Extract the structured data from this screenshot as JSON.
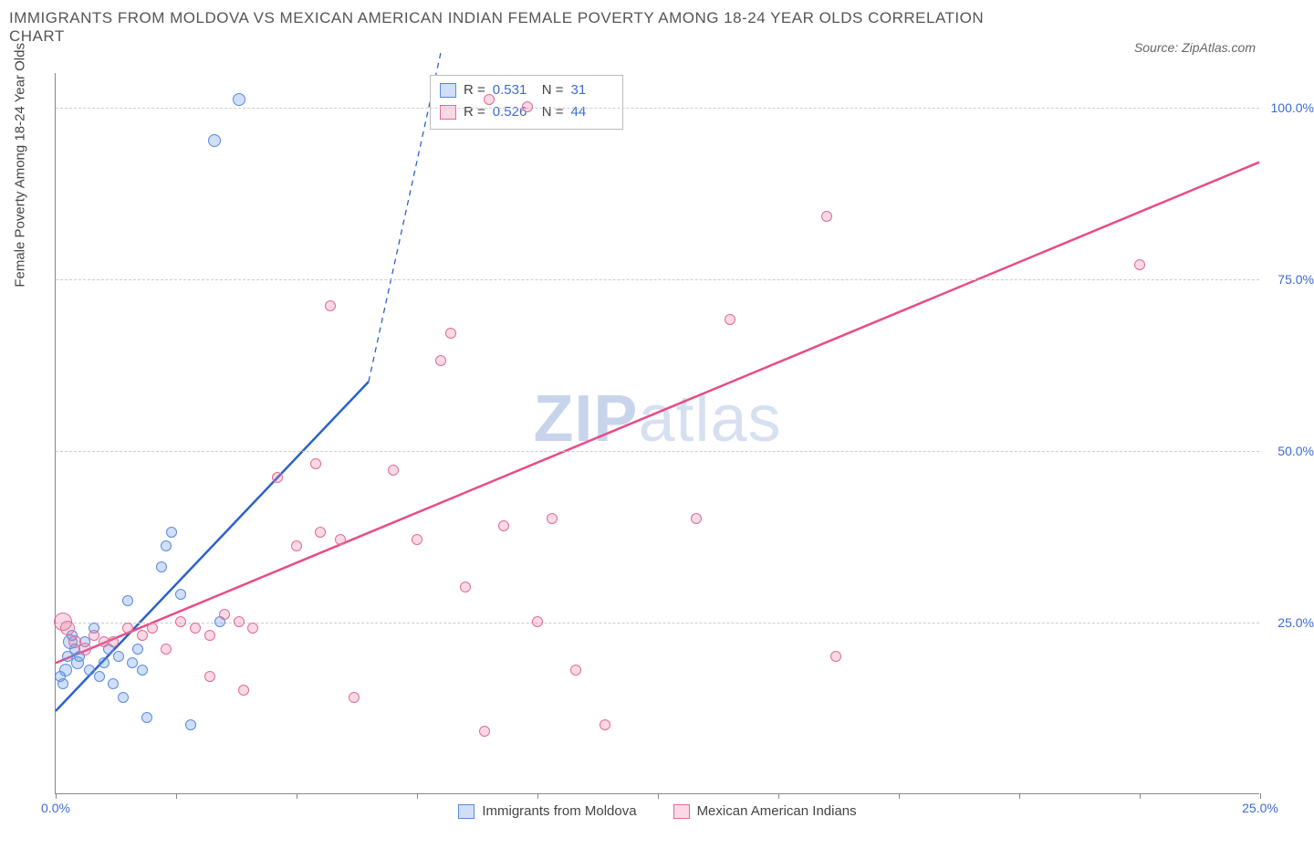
{
  "title_line1": "IMMIGRANTS FROM MOLDOVA VS MEXICAN AMERICAN INDIAN FEMALE POVERTY AMONG 18-24 YEAR OLDS CORRELATION",
  "title_line2": "CHART",
  "source_label": "Source: ZipAtlas.com",
  "y_axis_title": "Female Poverty Among 18-24 Year Olds",
  "watermark_thin": "ZIP",
  "watermark_bold": "atlas",
  "chart": {
    "type": "scatter-correlation",
    "xlim": [
      0,
      25
    ],
    "ylim": [
      0,
      105
    ],
    "x_ticks": [
      0,
      2.5,
      5,
      7.5,
      10,
      12.5,
      15,
      17.5,
      20,
      22.5,
      25
    ],
    "x_tick_labels": {
      "0": "0.0%",
      "25": "25.0%"
    },
    "y_ticks": [
      25,
      50,
      75,
      100
    ],
    "y_tick_labels": {
      "25": "25.0%",
      "50": "50.0%",
      "75": "75.0%",
      "100": "100.0%"
    },
    "grid_color": "#cccccc",
    "background_color": "#ffffff",
    "axis_label_color": "#3b6bd6",
    "series": [
      {
        "name": "Immigrants from Moldova",
        "color_fill": "rgba(100,150,230,0.30)",
        "color_stroke": "#5a8adb",
        "line_color": "#2b62c9",
        "R": "0.531",
        "N": "31",
        "trend": {
          "x1": 0,
          "y1": 12,
          "x2_solid": 6.5,
          "y2_solid": 60,
          "x2_dash": 8,
          "y2_dash": 108
        },
        "points": [
          {
            "x": 0.1,
            "y": 17,
            "r": 6
          },
          {
            "x": 0.15,
            "y": 16,
            "r": 6
          },
          {
            "x": 0.2,
            "y": 18,
            "r": 7
          },
          {
            "x": 0.25,
            "y": 20,
            "r": 6
          },
          {
            "x": 0.3,
            "y": 22,
            "r": 8
          },
          {
            "x": 0.35,
            "y": 23,
            "r": 6
          },
          {
            "x": 0.4,
            "y": 21,
            "r": 6
          },
          {
            "x": 0.45,
            "y": 19,
            "r": 7
          },
          {
            "x": 0.5,
            "y": 20,
            "r": 6
          },
          {
            "x": 0.6,
            "y": 22,
            "r": 6
          },
          {
            "x": 0.7,
            "y": 18,
            "r": 6
          },
          {
            "x": 0.8,
            "y": 24,
            "r": 6
          },
          {
            "x": 0.9,
            "y": 17,
            "r": 6
          },
          {
            "x": 1.0,
            "y": 19,
            "r": 6
          },
          {
            "x": 1.1,
            "y": 21,
            "r": 6
          },
          {
            "x": 1.2,
            "y": 16,
            "r": 6
          },
          {
            "x": 1.3,
            "y": 20,
            "r": 6
          },
          {
            "x": 1.4,
            "y": 14,
            "r": 6
          },
          {
            "x": 1.5,
            "y": 28,
            "r": 6
          },
          {
            "x": 1.6,
            "y": 19,
            "r": 6
          },
          {
            "x": 1.7,
            "y": 21,
            "r": 6
          },
          {
            "x": 1.8,
            "y": 18,
            "r": 6
          },
          {
            "x": 1.9,
            "y": 11,
            "r": 6
          },
          {
            "x": 2.2,
            "y": 33,
            "r": 6
          },
          {
            "x": 2.3,
            "y": 36,
            "r": 6
          },
          {
            "x": 2.4,
            "y": 38,
            "r": 6
          },
          {
            "x": 2.6,
            "y": 29,
            "r": 6
          },
          {
            "x": 2.8,
            "y": 10,
            "r": 6
          },
          {
            "x": 3.4,
            "y": 25,
            "r": 6
          },
          {
            "x": 3.3,
            "y": 95,
            "r": 7
          },
          {
            "x": 3.8,
            "y": 101,
            "r": 7
          }
        ]
      },
      {
        "name": "Mexican American Indians",
        "color_fill": "rgba(235,120,160,0.28)",
        "color_stroke": "#e16b96",
        "line_color": "#e94b87",
        "R": "0.526",
        "N": "44",
        "trend": {
          "x1": 0,
          "y1": 19,
          "x2_solid": 25,
          "y2_solid": 92
        },
        "points": [
          {
            "x": 0.15,
            "y": 25,
            "r": 10
          },
          {
            "x": 0.25,
            "y": 24,
            "r": 8
          },
          {
            "x": 0.4,
            "y": 22,
            "r": 7
          },
          {
            "x": 0.6,
            "y": 21,
            "r": 7
          },
          {
            "x": 0.8,
            "y": 23,
            "r": 6
          },
          {
            "x": 1.0,
            "y": 22,
            "r": 6
          },
          {
            "x": 1.2,
            "y": 22,
            "r": 6
          },
          {
            "x": 1.5,
            "y": 24,
            "r": 6
          },
          {
            "x": 1.8,
            "y": 23,
            "r": 6
          },
          {
            "x": 2.0,
            "y": 24,
            "r": 6
          },
          {
            "x": 2.3,
            "y": 21,
            "r": 6
          },
          {
            "x": 2.6,
            "y": 25,
            "r": 6
          },
          {
            "x": 2.9,
            "y": 24,
            "r": 6
          },
          {
            "x": 3.2,
            "y": 23,
            "r": 6
          },
          {
            "x": 3.5,
            "y": 26,
            "r": 6
          },
          {
            "x": 3.8,
            "y": 25,
            "r": 6
          },
          {
            "x": 4.1,
            "y": 24,
            "r": 6
          },
          {
            "x": 3.2,
            "y": 17,
            "r": 6
          },
          {
            "x": 3.9,
            "y": 15,
            "r": 6
          },
          {
            "x": 4.6,
            "y": 46,
            "r": 6
          },
          {
            "x": 5.0,
            "y": 36,
            "r": 6
          },
          {
            "x": 5.4,
            "y": 48,
            "r": 6
          },
          {
            "x": 5.5,
            "y": 38,
            "r": 6
          },
          {
            "x": 5.7,
            "y": 71,
            "r": 6
          },
          {
            "x": 5.9,
            "y": 37,
            "r": 6
          },
          {
            "x": 6.2,
            "y": 14,
            "r": 6
          },
          {
            "x": 7.0,
            "y": 47,
            "r": 6
          },
          {
            "x": 7.5,
            "y": 37,
            "r": 6
          },
          {
            "x": 8.0,
            "y": 63,
            "r": 6
          },
          {
            "x": 8.2,
            "y": 67,
            "r": 6
          },
          {
            "x": 8.5,
            "y": 30,
            "r": 6
          },
          {
            "x": 8.9,
            "y": 9,
            "r": 6
          },
          {
            "x": 9.3,
            "y": 39,
            "r": 6
          },
          {
            "x": 9.8,
            "y": 100,
            "r": 6
          },
          {
            "x": 10.0,
            "y": 25,
            "r": 6
          },
          {
            "x": 10.3,
            "y": 40,
            "r": 6
          },
          {
            "x": 10.8,
            "y": 18,
            "r": 6
          },
          {
            "x": 11.4,
            "y": 10,
            "r": 6
          },
          {
            "x": 9.0,
            "y": 101,
            "r": 6
          },
          {
            "x": 13.3,
            "y": 40,
            "r": 6
          },
          {
            "x": 14.0,
            "y": 69,
            "r": 6
          },
          {
            "x": 16.0,
            "y": 84,
            "r": 6
          },
          {
            "x": 16.2,
            "y": 20,
            "r": 6
          },
          {
            "x": 22.5,
            "y": 77,
            "r": 6
          }
        ]
      }
    ]
  },
  "stats_labels": {
    "R": "R =",
    "N": "N ="
  },
  "legend_series1": "Immigrants from Moldova",
  "legend_series2": "Mexican American Indians"
}
